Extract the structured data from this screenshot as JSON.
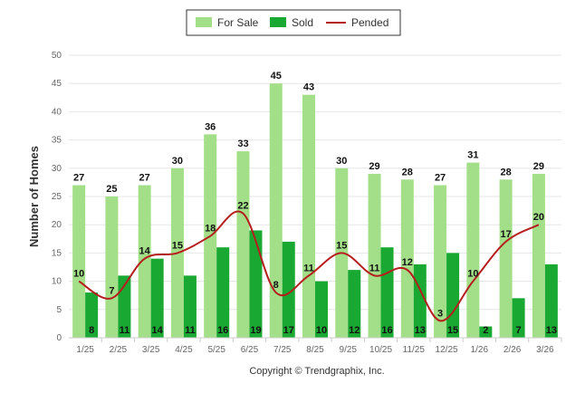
{
  "chart_data": {
    "type": "bar",
    "categories": [
      "1/25",
      "2/25",
      "3/25",
      "4/25",
      "5/25",
      "6/25",
      "7/25",
      "8/25",
      "9/25",
      "10/25",
      "11/25",
      "12/25",
      "1/26",
      "2/26",
      "3/26"
    ],
    "series": [
      {
        "name": "For Sale",
        "kind": "bar",
        "color": "#a3df88",
        "values": [
          27,
          25,
          27,
          30,
          36,
          33,
          45,
          43,
          30,
          29,
          28,
          27,
          31,
          28,
          29
        ]
      },
      {
        "name": "Sold",
        "kind": "bar",
        "color": "#19a832",
        "values": [
          8,
          11,
          14,
          11,
          16,
          19,
          17,
          10,
          12,
          16,
          13,
          15,
          2,
          7,
          13
        ]
      },
      {
        "name": "Pended",
        "kind": "line",
        "color": "#b61e1e",
        "values": [
          10,
          7,
          14,
          15,
          18,
          22,
          8,
          11,
          15,
          11,
          12,
          3,
          10,
          17,
          20
        ]
      }
    ],
    "ylabel": "Number of Homes",
    "xlabel": "",
    "ylim": [
      0,
      50
    ],
    "yticks": [
      0,
      5,
      10,
      15,
      20,
      25,
      30,
      35,
      40,
      45,
      50
    ],
    "grid": true,
    "legend": "top-center",
    "footer": "Copyright © Trendgraphix, Inc."
  }
}
